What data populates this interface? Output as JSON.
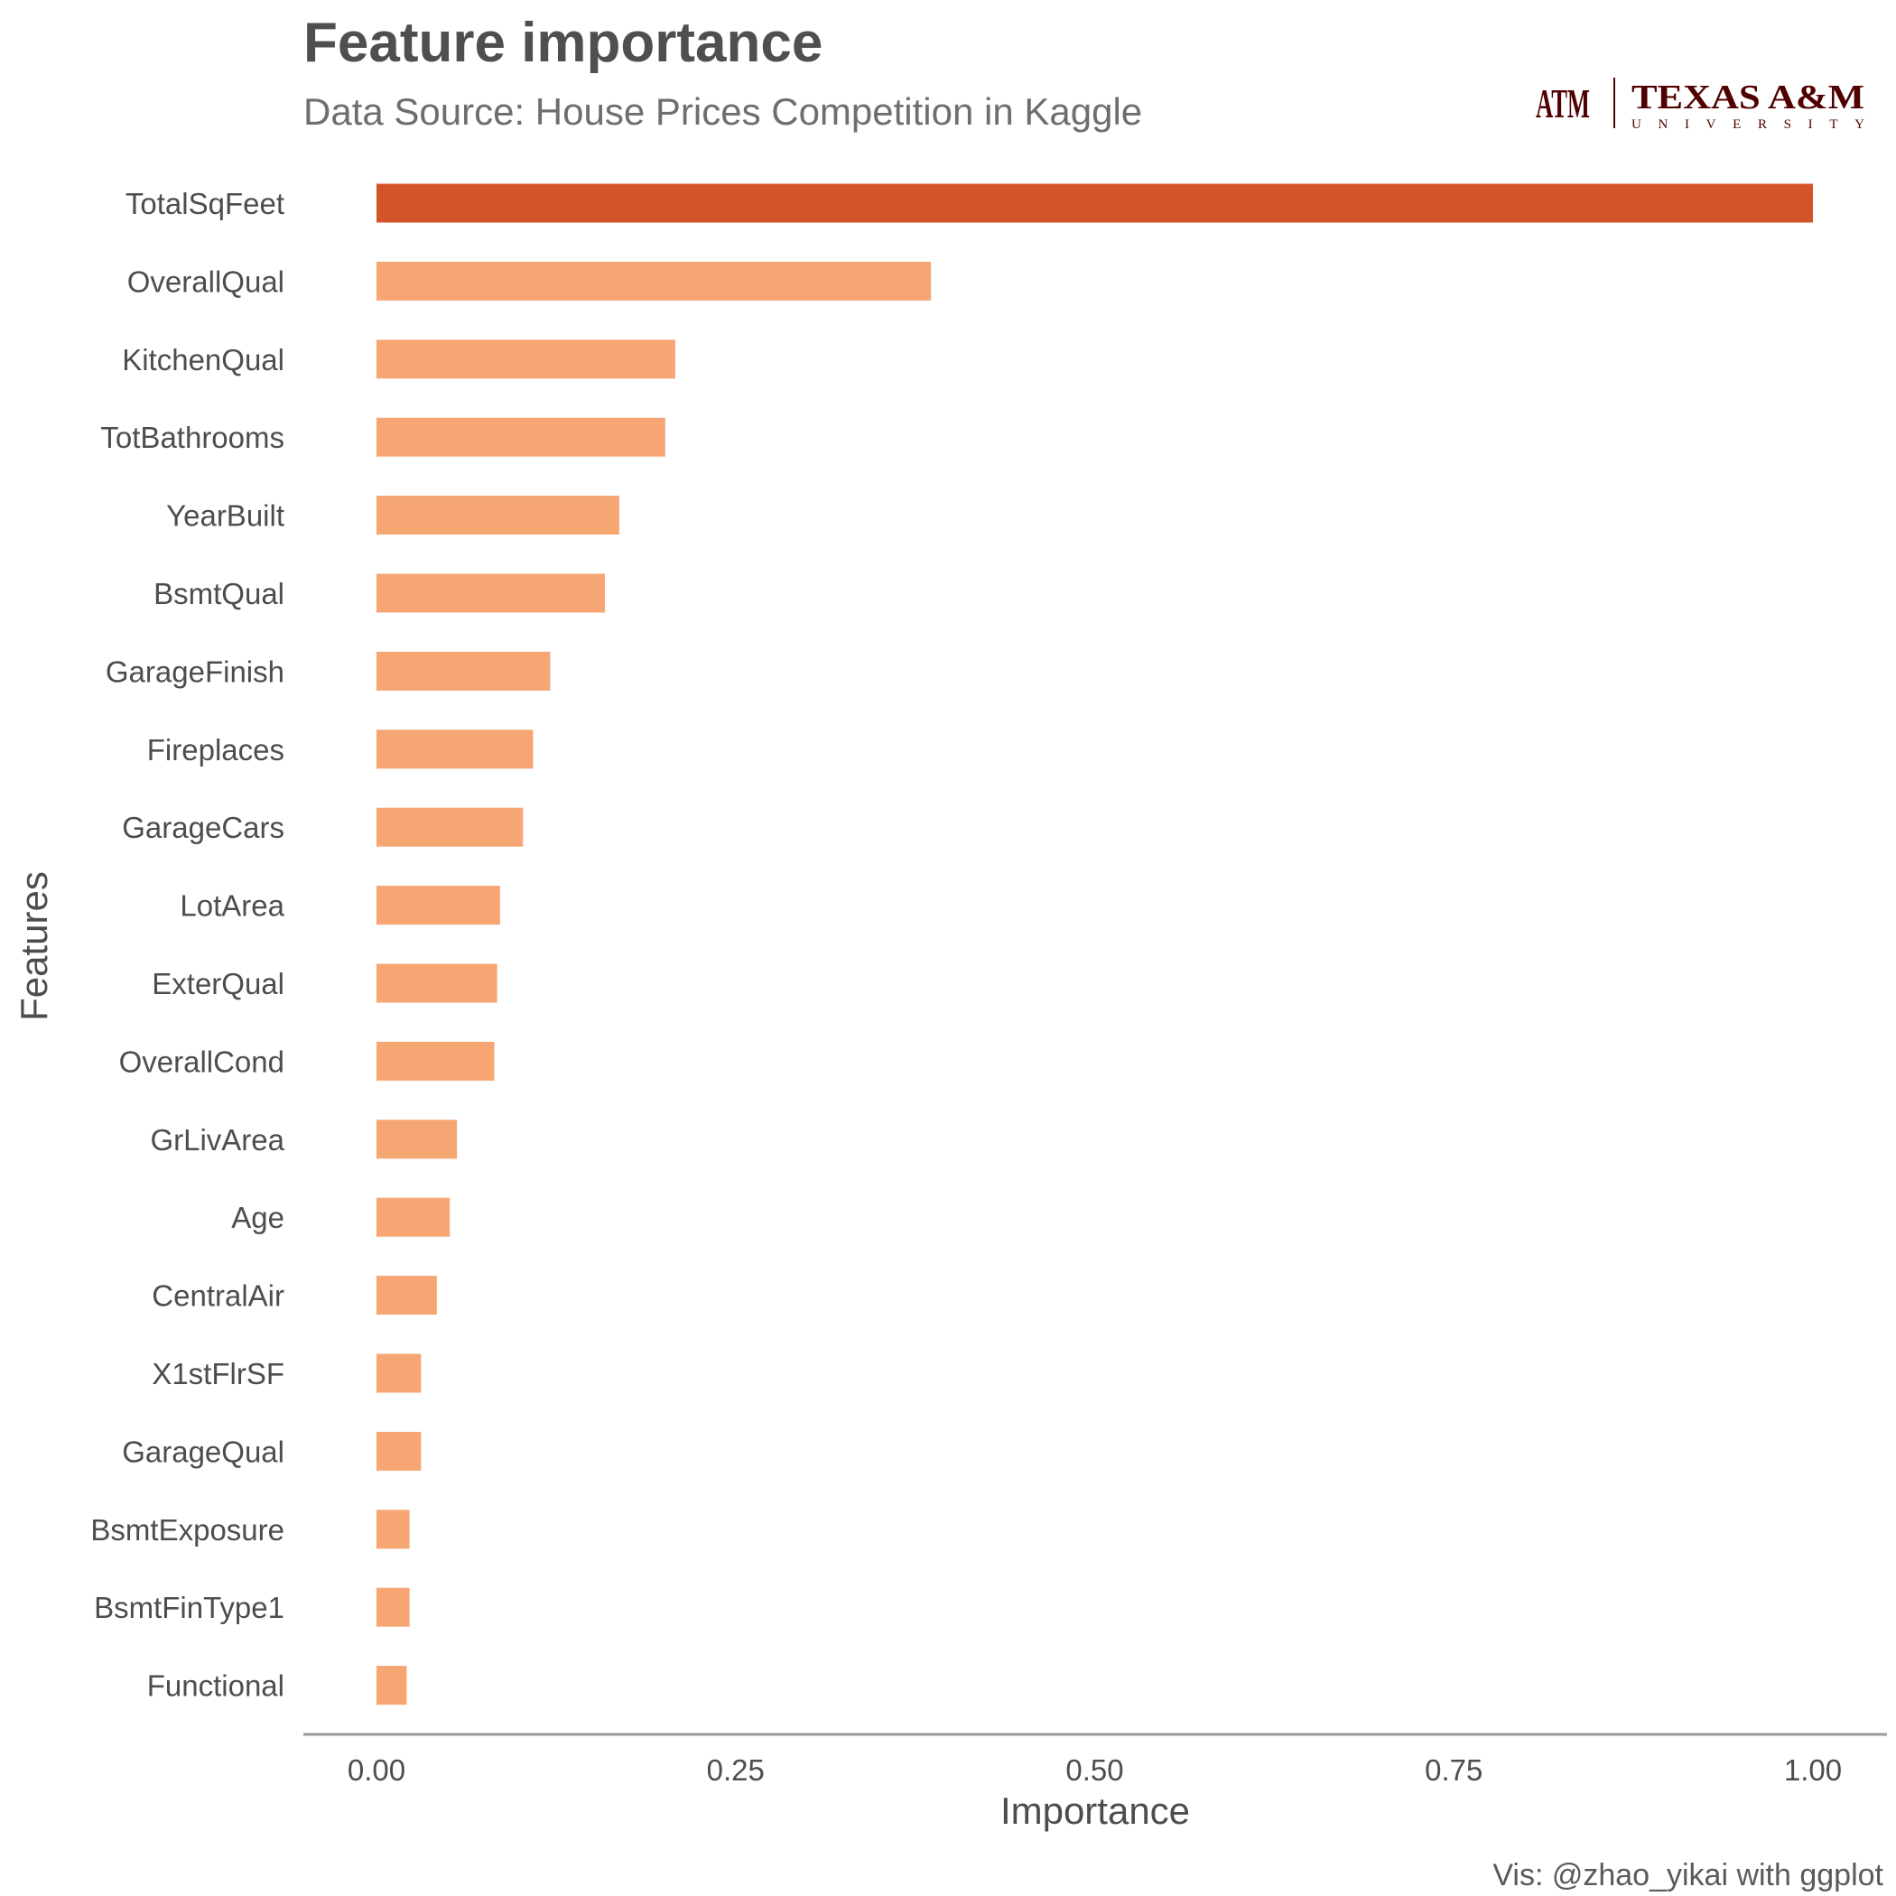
{
  "chart_data": {
    "type": "bar",
    "orientation": "horizontal",
    "title": "Feature importance",
    "subtitle": "Data Source: House Prices Competition in Kaggle",
    "caption": "Vis: @zhao_yikai with ggplot",
    "xlabel": "Importance",
    "ylabel": "Features",
    "xlim": [
      0,
      1
    ],
    "xticks": [
      "0.00",
      "0.25",
      "0.50",
      "0.75",
      "1.00"
    ],
    "grid": false,
    "highlight_color": "#d4542a",
    "bar_color": "#f5a673",
    "categories": [
      "TotalSqFeet",
      "OverallQual",
      "KitchenQual",
      "TotBathrooms",
      "YearBuilt",
      "BsmtQual",
      "GarageFinish",
      "Fireplaces",
      "GarageCars",
      "LotArea",
      "ExterQual",
      "OverallCond",
      "GrLivArea",
      "Age",
      "CentralAir",
      "X1stFlrSF",
      "GarageQual",
      "BsmtExposure",
      "BsmtFinType1",
      "Functional"
    ],
    "values": [
      1.0,
      0.386,
      0.208,
      0.201,
      0.169,
      0.159,
      0.121,
      0.109,
      0.102,
      0.086,
      0.084,
      0.082,
      0.056,
      0.051,
      0.042,
      0.031,
      0.031,
      0.023,
      0.023,
      0.021
    ]
  },
  "logo": {
    "text": "TEXAS A&M",
    "subtext": "UNIVERSITY",
    "mark": "ATM",
    "color": "#500000"
  }
}
